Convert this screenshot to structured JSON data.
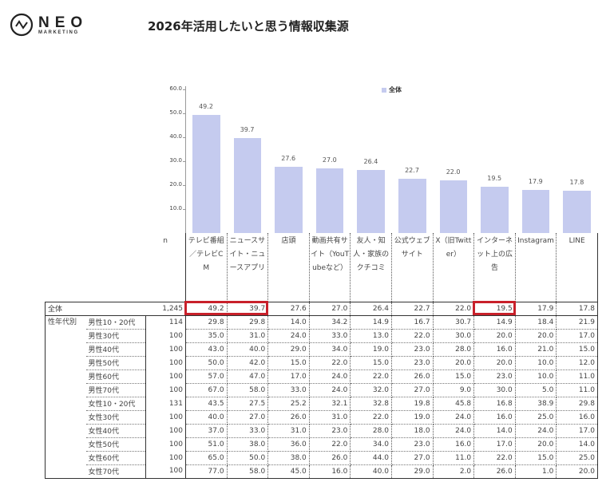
{
  "logo": {
    "name": "NEO",
    "sub": "MARKETING"
  },
  "title": "2026年活用したいと思う情報収集源",
  "chart_data": {
    "type": "bar",
    "title": "2026年活用したいと思う情報収集源",
    "legend": {
      "entries": [
        "全体"
      ],
      "position": "top"
    },
    "ylim": [
      0,
      60
    ],
    "yticks": [
      "60.0",
      "50.0",
      "40.0",
      "30.0",
      "20.0",
      "10.0"
    ],
    "categories": [
      "テレビ番組／テレビCM",
      "ニュースサイト・ニュースアプリ",
      "店頭",
      "動画共有サイト（YouTubeなど）",
      "友人・知人・家族のクチコミ",
      "公式ウェブサイト",
      "X（旧Twitter）",
      "インターネット上の広告",
      "Instagram",
      "LINE"
    ],
    "series": [
      {
        "name": "全体",
        "values": [
          49.2,
          39.7,
          27.6,
          27.0,
          26.4,
          22.7,
          22.0,
          19.5,
          17.9,
          17.8
        ],
        "labels": [
          "49.2",
          "39.7",
          "27.6",
          "27.0",
          "26.4",
          "22.7",
          "22.0",
          "19.5",
          "17.9",
          "17.8"
        ],
        "color": "#c5cbef"
      }
    ]
  },
  "table": {
    "n_header": "n",
    "highlight_color": "#c8202a",
    "total": {
      "label": "全体",
      "n": "1,245",
      "values": [
        "49.2",
        "39.7",
        "27.6",
        "27.0",
        "26.4",
        "22.7",
        "22.0",
        "19.5",
        "17.9",
        "17.8"
      ]
    },
    "group_label": "性年代別",
    "rows": [
      {
        "label": "男性10・20代",
        "n": "114",
        "values": [
          "29.8",
          "29.8",
          "14.0",
          "34.2",
          "14.9",
          "16.7",
          "30.7",
          "14.9",
          "18.4",
          "21.9"
        ]
      },
      {
        "label": "男性30代",
        "n": "100",
        "values": [
          "35.0",
          "31.0",
          "24.0",
          "33.0",
          "13.0",
          "22.0",
          "30.0",
          "20.0",
          "20.0",
          "17.0"
        ]
      },
      {
        "label": "男性40代",
        "n": "100",
        "values": [
          "43.0",
          "40.0",
          "29.0",
          "34.0",
          "19.0",
          "23.0",
          "28.0",
          "16.0",
          "21.0",
          "15.0"
        ]
      },
      {
        "label": "男性50代",
        "n": "100",
        "values": [
          "50.0",
          "42.0",
          "15.0",
          "22.0",
          "15.0",
          "23.0",
          "20.0",
          "20.0",
          "10.0",
          "12.0"
        ]
      },
      {
        "label": "男性60代",
        "n": "100",
        "values": [
          "57.0",
          "47.0",
          "17.0",
          "24.0",
          "22.0",
          "26.0",
          "15.0",
          "23.0",
          "10.0",
          "11.0"
        ]
      },
      {
        "label": "男性70代",
        "n": "100",
        "values": [
          "67.0",
          "58.0",
          "33.0",
          "24.0",
          "32.0",
          "27.0",
          "9.0",
          "30.0",
          "5.0",
          "11.0"
        ]
      },
      {
        "label": "女性10・20代",
        "n": "131",
        "values": [
          "43.5",
          "27.5",
          "25.2",
          "32.1",
          "32.8",
          "19.8",
          "45.8",
          "16.8",
          "38.9",
          "29.8"
        ]
      },
      {
        "label": "女性30代",
        "n": "100",
        "values": [
          "40.0",
          "27.0",
          "26.0",
          "31.0",
          "22.0",
          "19.0",
          "24.0",
          "16.0",
          "25.0",
          "16.0"
        ]
      },
      {
        "label": "女性40代",
        "n": "100",
        "values": [
          "37.0",
          "33.0",
          "31.0",
          "23.0",
          "28.0",
          "18.0",
          "24.0",
          "14.0",
          "24.0",
          "17.0"
        ]
      },
      {
        "label": "女性50代",
        "n": "100",
        "values": [
          "51.0",
          "38.0",
          "36.0",
          "22.0",
          "34.0",
          "23.0",
          "16.0",
          "17.0",
          "20.0",
          "14.0"
        ]
      },
      {
        "label": "女性60代",
        "n": "100",
        "values": [
          "65.0",
          "50.0",
          "38.0",
          "26.0",
          "44.0",
          "27.0",
          "11.0",
          "22.0",
          "15.0",
          "25.0"
        ]
      },
      {
        "label": "女性70代",
        "n": "100",
        "values": [
          "77.0",
          "58.0",
          "45.0",
          "16.0",
          "40.0",
          "29.0",
          "2.0",
          "26.0",
          "1.0",
          "20.0"
        ]
      }
    ]
  }
}
